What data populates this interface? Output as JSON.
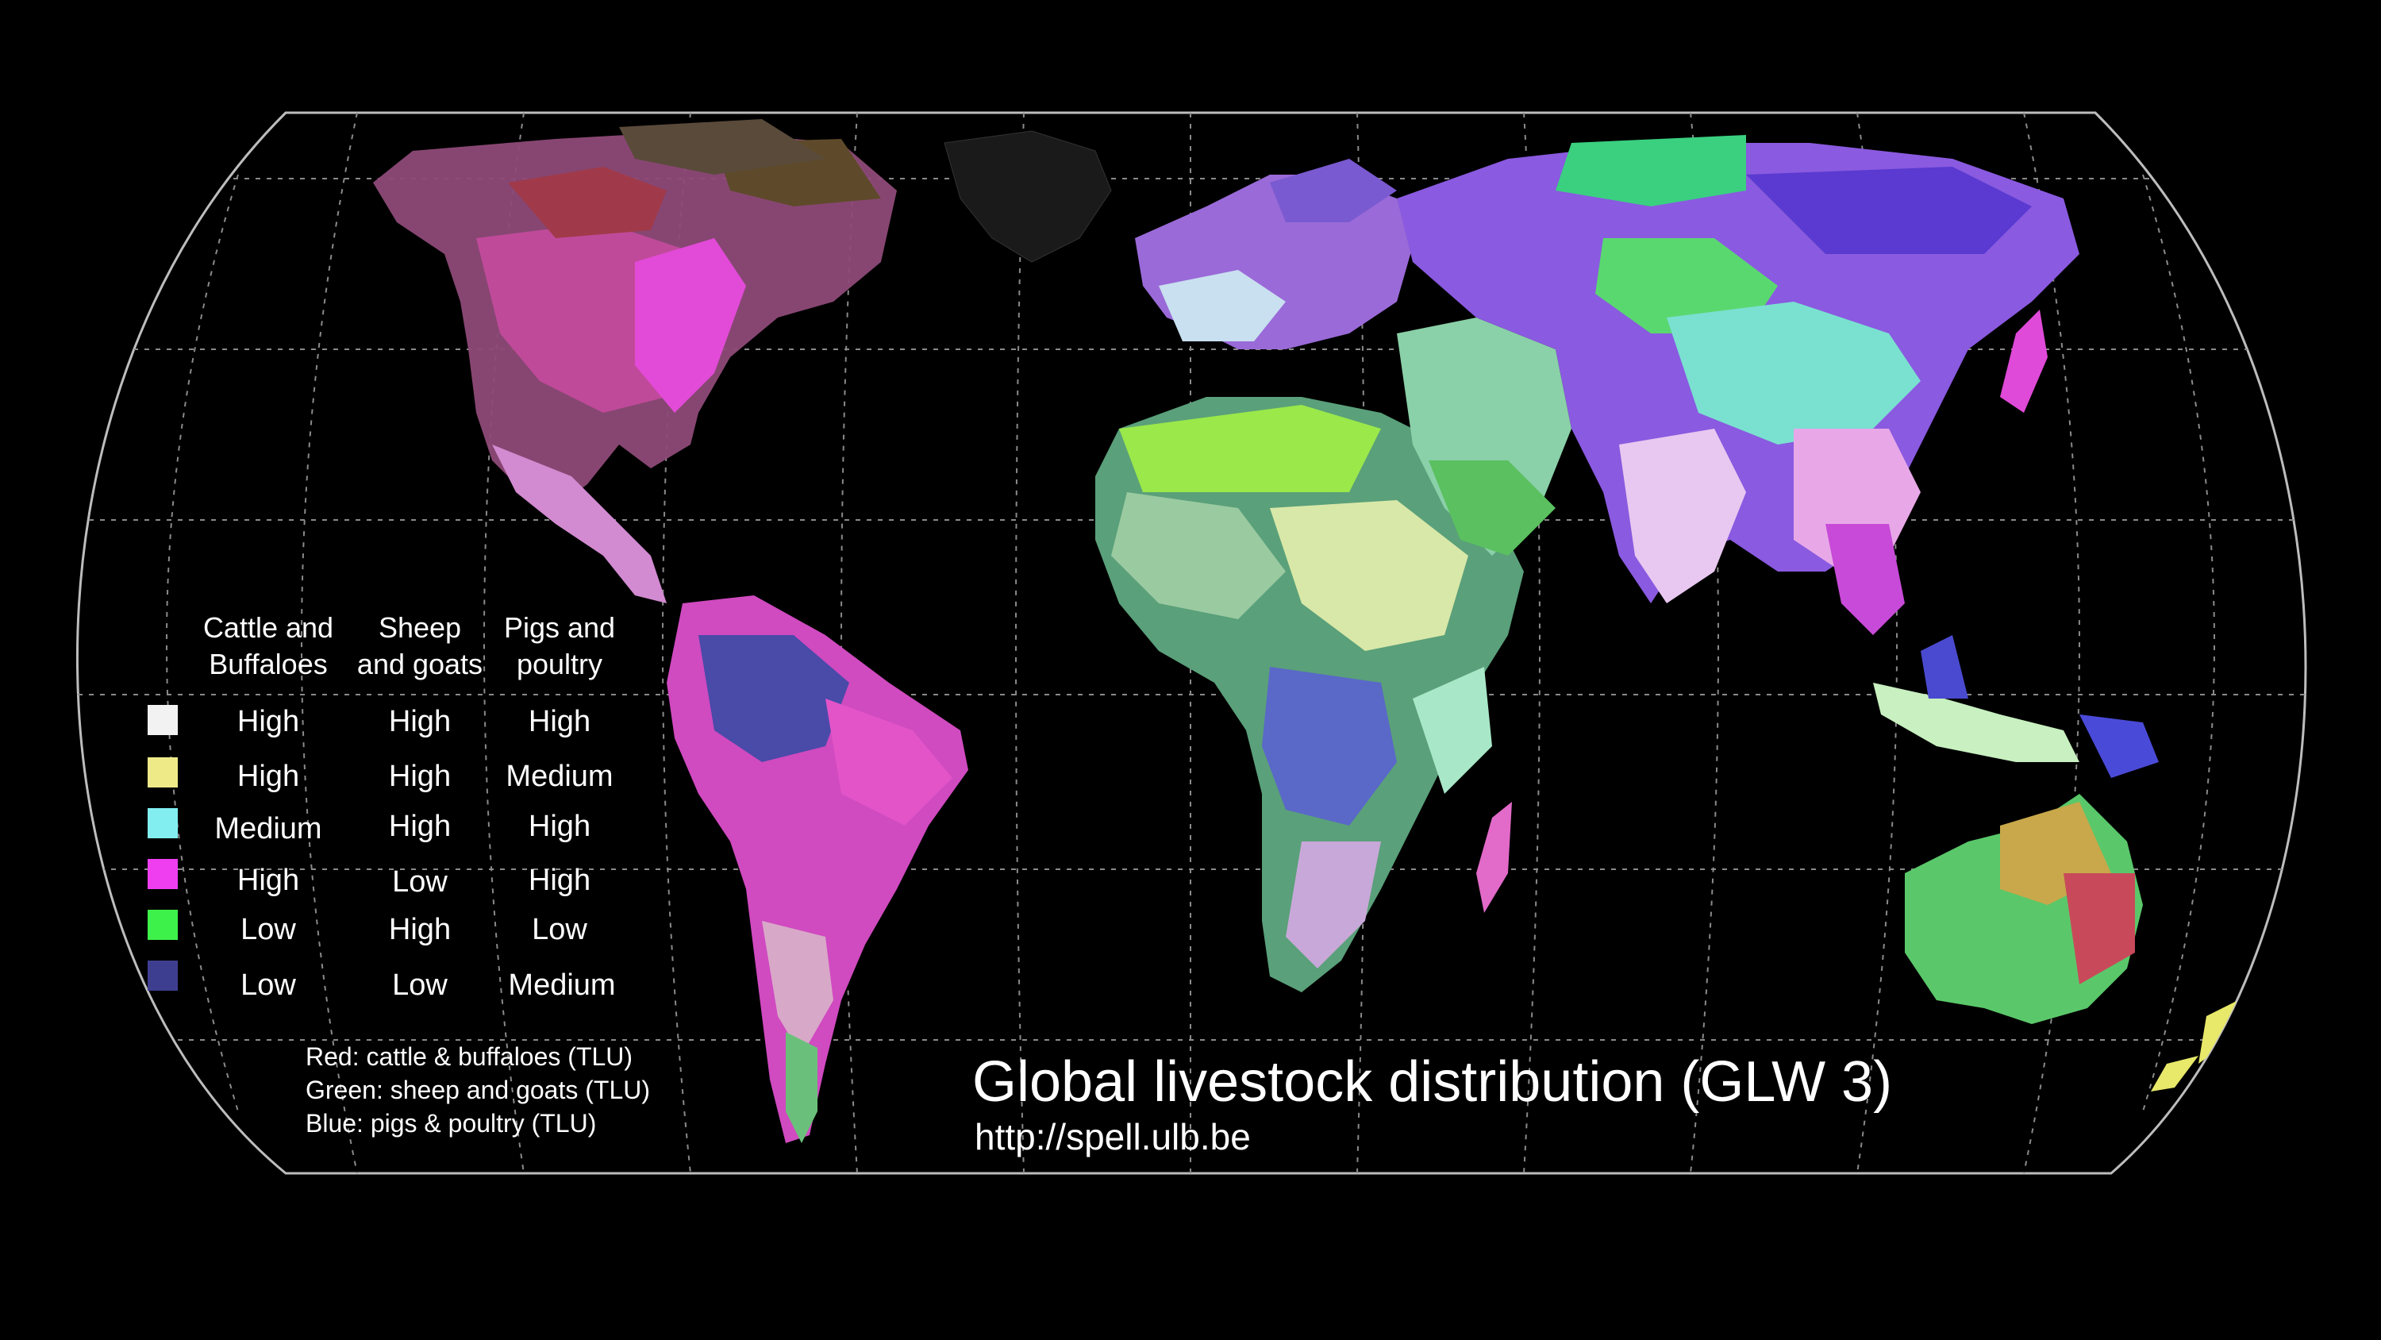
{
  "map": {
    "title": "Global livestock distribution (GLW 3)",
    "url": "http://spell.ulb.be",
    "background_color": "#000000",
    "graticule_color": "#9a9a9a",
    "projection": "equal-earth-like pseudocylindrical",
    "layer_description": "RGB composite of livestock density"
  },
  "legend": {
    "headers": [
      {
        "line1": "Cattle and",
        "line2": "Buffaloes"
      },
      {
        "line1": "Sheep",
        "line2": "and goats"
      },
      {
        "line1": "Pigs and",
        "line2": "poultry"
      }
    ],
    "rows": [
      {
        "color": "#f2f2f2",
        "cattle": "High",
        "sheep": "High",
        "pigs": "High"
      },
      {
        "color": "#eeea88",
        "cattle": "High",
        "sheep": "High",
        "pigs": "Medium"
      },
      {
        "color": "#82eef0",
        "cattle": "Medium",
        "sheep": "High",
        "pigs": "High"
      },
      {
        "color": "#ee3ef0",
        "cattle": "High",
        "sheep": "Low",
        "pigs": "High"
      },
      {
        "color": "#3ef04a",
        "cattle": "Low",
        "sheep": "High",
        "pigs": "Low"
      },
      {
        "color": "#3e3e90",
        "cattle": "Low",
        "sheep": "Low",
        "pigs": "Medium"
      }
    ]
  },
  "notes": {
    "red": "Red: cattle & buffaloes (TLU)",
    "green": "Green: sheep and goats (TLU)",
    "blue": "Blue: pigs & poultry (TLU)"
  }
}
